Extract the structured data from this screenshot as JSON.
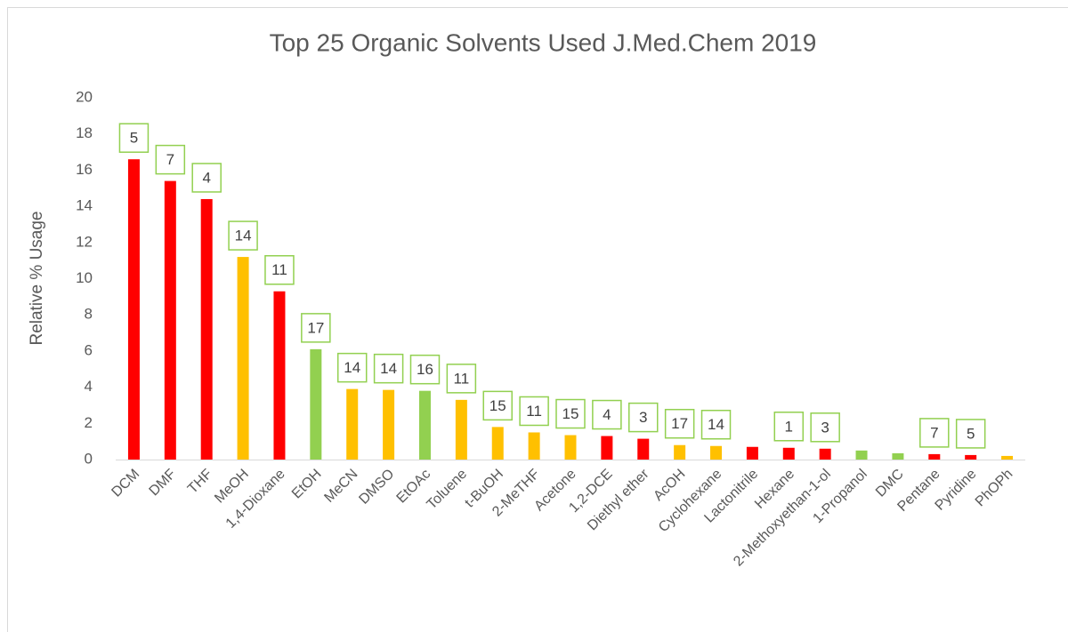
{
  "chart_data": {
    "type": "bar",
    "title": "Top 25 Organic Solvents Used J.Med.Chem 2019",
    "y_label": "Relative % Usage",
    "categories": [
      "DCM",
      "DMF",
      "THF",
      "MeOH",
      "1,4-Dioxane",
      "EtOH",
      "MeCN",
      "DMSO",
      "EtOAc",
      "Toluene",
      "t-BuOH",
      "2-MeTHF",
      "Acetone",
      "1,2-DCE",
      "Diethyl ether",
      "AcOH",
      "Cyclohexane",
      "Lactonitrile",
      "Hexane",
      "2-Methoxyethan-1-ol",
      "1-Propanol",
      "DMC",
      "Pentane",
      "Pyridine",
      "PhOPh"
    ],
    "values": [
      16.6,
      15.4,
      14.4,
      11.2,
      9.3,
      6.1,
      3.9,
      3.85,
      3.8,
      3.3,
      1.8,
      1.5,
      1.35,
      1.3,
      1.15,
      0.8,
      0.75,
      0.7,
      0.65,
      0.6,
      0.5,
      0.35,
      0.3,
      0.25,
      0.2
    ],
    "colors": [
      "#ff0000",
      "#ff0000",
      "#ff0000",
      "#ffc000",
      "#ff0000",
      "#92d050",
      "#ffc000",
      "#ffc000",
      "#92d050",
      "#ffc000",
      "#ffc000",
      "#ffc000",
      "#ffc000",
      "#ff0000",
      "#ff0000",
      "#ffc000",
      "#ffc000",
      "#ff0000",
      "#ff0000",
      "#ff0000",
      "#92d050",
      "#92d050",
      "#ff0000",
      "#ff0000",
      "#ffc000"
    ],
    "annotations": [
      5,
      7,
      4,
      14,
      11,
      17,
      14,
      14,
      16,
      11,
      15,
      11,
      15,
      4,
      3,
      17,
      14,
      null,
      1,
      3,
      null,
      null,
      7,
      5,
      null
    ],
    "ylim": [
      0,
      20
    ],
    "yticks": [
      0,
      2,
      4,
      6,
      8,
      10,
      12,
      14,
      16,
      18,
      20
    ],
    "grid": false
  }
}
